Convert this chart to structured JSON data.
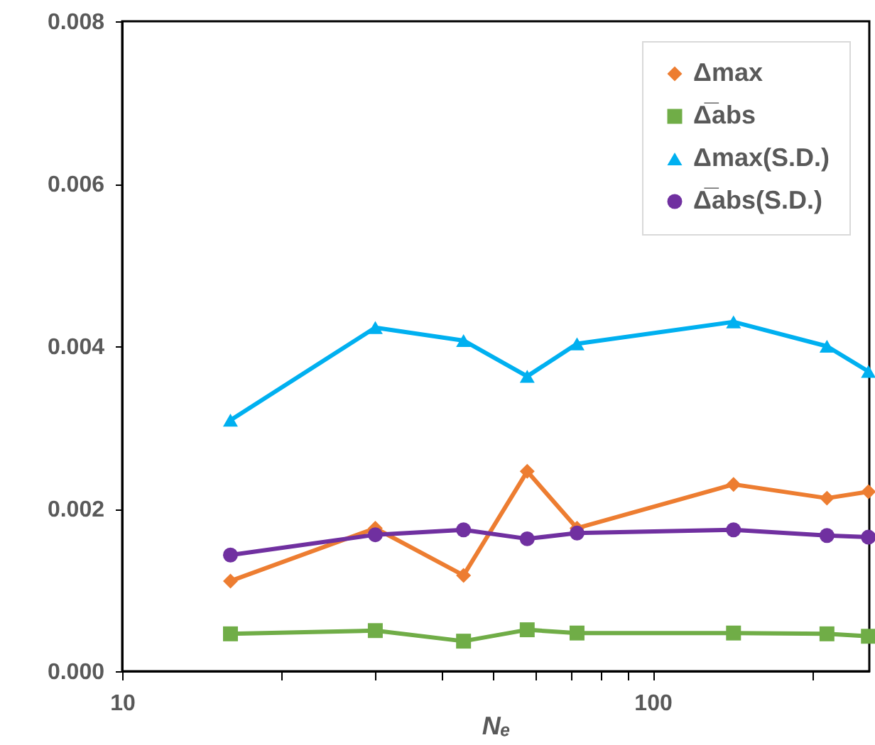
{
  "chart_data": {
    "type": "line",
    "xlabel": "Nₑ",
    "log": "x",
    "x": [
      16,
      30,
      44,
      58,
      72,
      142,
      213,
      255
    ],
    "xlim": [
      10,
      256
    ],
    "xticks": [
      10,
      {
        "value": 20,
        "label": null
      },
      {
        "value": 30,
        "label": null
      },
      {
        "value": 40,
        "label": null
      },
      {
        "value": 50,
        "label": null
      },
      {
        "value": 60,
        "label": null
      },
      {
        "value": 70,
        "label": null
      },
      {
        "value": 80,
        "label": null
      },
      {
        "value": 90,
        "label": null
      },
      100,
      {
        "value": 200,
        "label": null
      }
    ],
    "ylim": [
      0,
      0.008
    ],
    "yticks": [
      {
        "value": 0,
        "label": "0.000"
      },
      {
        "value": 0.002,
        "label": "0.002"
      },
      {
        "value": 0.004,
        "label": "0.004"
      },
      {
        "value": 0.006,
        "label": "0.006"
      },
      {
        "value": 0.008,
        "label": "0.008"
      }
    ],
    "grid": false,
    "legend": "top right",
    "series": [
      {
        "name": "Δmax",
        "color": "#ed7d31",
        "marker": "diamond",
        "values": [
          0.00111,
          0.00176,
          0.00118,
          0.00246,
          0.00176,
          0.0023,
          0.00213,
          0.00221
        ]
      },
      {
        "name": "Δ̅abs",
        "color": "#70ad47",
        "marker": "square",
        "values": [
          0.00046,
          0.0005,
          0.00037,
          0.00051,
          0.00047,
          0.00047,
          0.00046,
          0.00043
        ]
      },
      {
        "name": "Δmax(S.D.)",
        "color": "#00b0f0",
        "marker": "triangle",
        "values": [
          0.00309,
          0.00423,
          0.00407,
          0.00363,
          0.00403,
          0.0043,
          0.004,
          0.00369
        ]
      },
      {
        "name": "Δ̅abs(S.D.)",
        "color": "#7030a0",
        "marker": "circle",
        "values": [
          0.00143,
          0.00168,
          0.00174,
          0.00163,
          0.0017,
          0.00174,
          0.00167,
          0.00165
        ]
      }
    ]
  }
}
